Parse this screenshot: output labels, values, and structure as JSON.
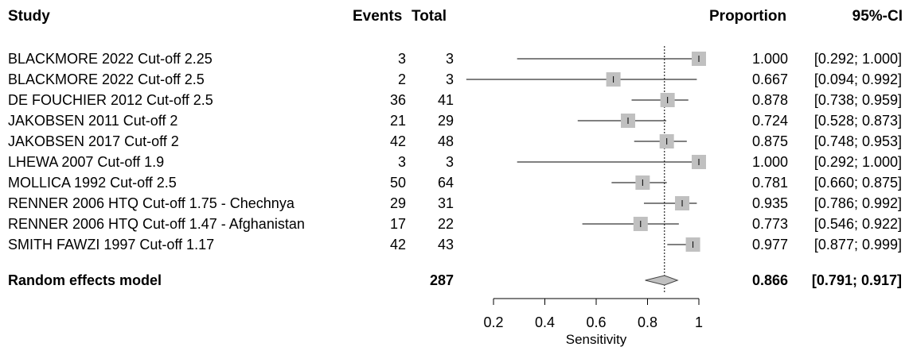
{
  "headers": {
    "study": "Study",
    "events": "Events",
    "total": "Total",
    "proportion": "Proportion",
    "ci": "95%-CI"
  },
  "studies": [
    {
      "name": "BLACKMORE 2022 Cut-off 2.25",
      "events": "3",
      "total": "3",
      "prop_text": "1.000",
      "ci_text": "[0.292; 1.000]"
    },
    {
      "name": "BLACKMORE 2022 Cut-off 2.5",
      "events": "2",
      "total": "3",
      "prop_text": "0.667",
      "ci_text": "[0.094; 0.992]"
    },
    {
      "name": "DE FOUCHIER 2012 Cut-off 2.5",
      "events": "36",
      "total": "41",
      "prop_text": "0.878",
      "ci_text": "[0.738; 0.959]"
    },
    {
      "name": "JAKOBSEN 2011 Cut-off 2",
      "events": "21",
      "total": "29",
      "prop_text": "0.724",
      "ci_text": "[0.528; 0.873]"
    },
    {
      "name": "JAKOBSEN 2017 Cut-off 2",
      "events": "42",
      "total": "48",
      "prop_text": "0.875",
      "ci_text": "[0.748; 0.953]"
    },
    {
      "name": "LHEWA 2007 Cut-off 1.9",
      "events": "3",
      "total": "3",
      "prop_text": "1.000",
      "ci_text": "[0.292; 1.000]"
    },
    {
      "name": "MOLLICA 1992 Cut-off 2.5",
      "events": "50",
      "total": "64",
      "prop_text": "0.781",
      "ci_text": "[0.660; 0.875]"
    },
    {
      "name": "RENNER 2006 HTQ Cut-off 1.75 - Chechnya",
      "events": "29",
      "total": "31",
      "prop_text": "0.935",
      "ci_text": "[0.786; 0.992]"
    },
    {
      "name": "RENNER 2006 HTQ Cut-off 1.47 - Afghanistan",
      "events": "17",
      "total": "22",
      "prop_text": "0.773",
      "ci_text": "[0.546; 0.922]"
    },
    {
      "name": "SMITH FAWZI 1997 Cut-off 1.17",
      "events": "42",
      "total": "43",
      "prop_text": "0.977",
      "ci_text": "[0.877; 0.999]"
    }
  ],
  "summary": {
    "name": "Random effects model",
    "total": "287",
    "prop_text": "0.866",
    "ci_text": "[0.791; 0.917]"
  },
  "chart_data": {
    "type": "forest",
    "xlabel": "Sensitivity",
    "xlim": [
      0.2,
      1.0
    ],
    "ticks": [
      0.2,
      0.4,
      0.6,
      0.8,
      1.0
    ],
    "tick_labels": [
      "0.2",
      "0.4",
      "0.6",
      "0.8",
      "1"
    ],
    "reference_line": 0.866,
    "estimates": [
      {
        "study": "BLACKMORE 2022 Cut-off 2.25",
        "value": 1.0,
        "lower": 0.292,
        "upper": 1.0,
        "weight": 1.0
      },
      {
        "study": "BLACKMORE 2022 Cut-off 2.5",
        "value": 0.667,
        "lower": 0.094,
        "upper": 0.992,
        "weight": 1.0
      },
      {
        "study": "DE FOUCHIER 2012 Cut-off 2.5",
        "value": 0.878,
        "lower": 0.738,
        "upper": 0.959,
        "weight": 1.0
      },
      {
        "study": "JAKOBSEN 2011 Cut-off 2",
        "value": 0.724,
        "lower": 0.528,
        "upper": 0.873,
        "weight": 1.0
      },
      {
        "study": "JAKOBSEN 2017 Cut-off 2",
        "value": 0.875,
        "lower": 0.748,
        "upper": 0.953,
        "weight": 1.0
      },
      {
        "study": "LHEWA 2007 Cut-off 1.9",
        "value": 1.0,
        "lower": 0.292,
        "upper": 1.0,
        "weight": 1.0
      },
      {
        "study": "MOLLICA 1992 Cut-off 2.5",
        "value": 0.781,
        "lower": 0.66,
        "upper": 0.875,
        "weight": 1.0
      },
      {
        "study": "RENNER 2006 HTQ Cut-off 1.75 - Chechnya",
        "value": 0.935,
        "lower": 0.786,
        "upper": 0.992,
        "weight": 1.0
      },
      {
        "study": "RENNER 2006 HTQ Cut-off 1.47 - Afghanistan",
        "value": 0.773,
        "lower": 0.546,
        "upper": 0.922,
        "weight": 1.0
      },
      {
        "study": "SMITH FAWZI 1997 Cut-off 1.17",
        "value": 0.977,
        "lower": 0.877,
        "upper": 0.999,
        "weight": 1.0
      }
    ],
    "pooled": {
      "value": 0.866,
      "lower": 0.791,
      "upper": 0.917
    },
    "colors": {
      "square": "#c0c0c0",
      "line": "#000000",
      "diamond": "#c0c0c0"
    }
  }
}
